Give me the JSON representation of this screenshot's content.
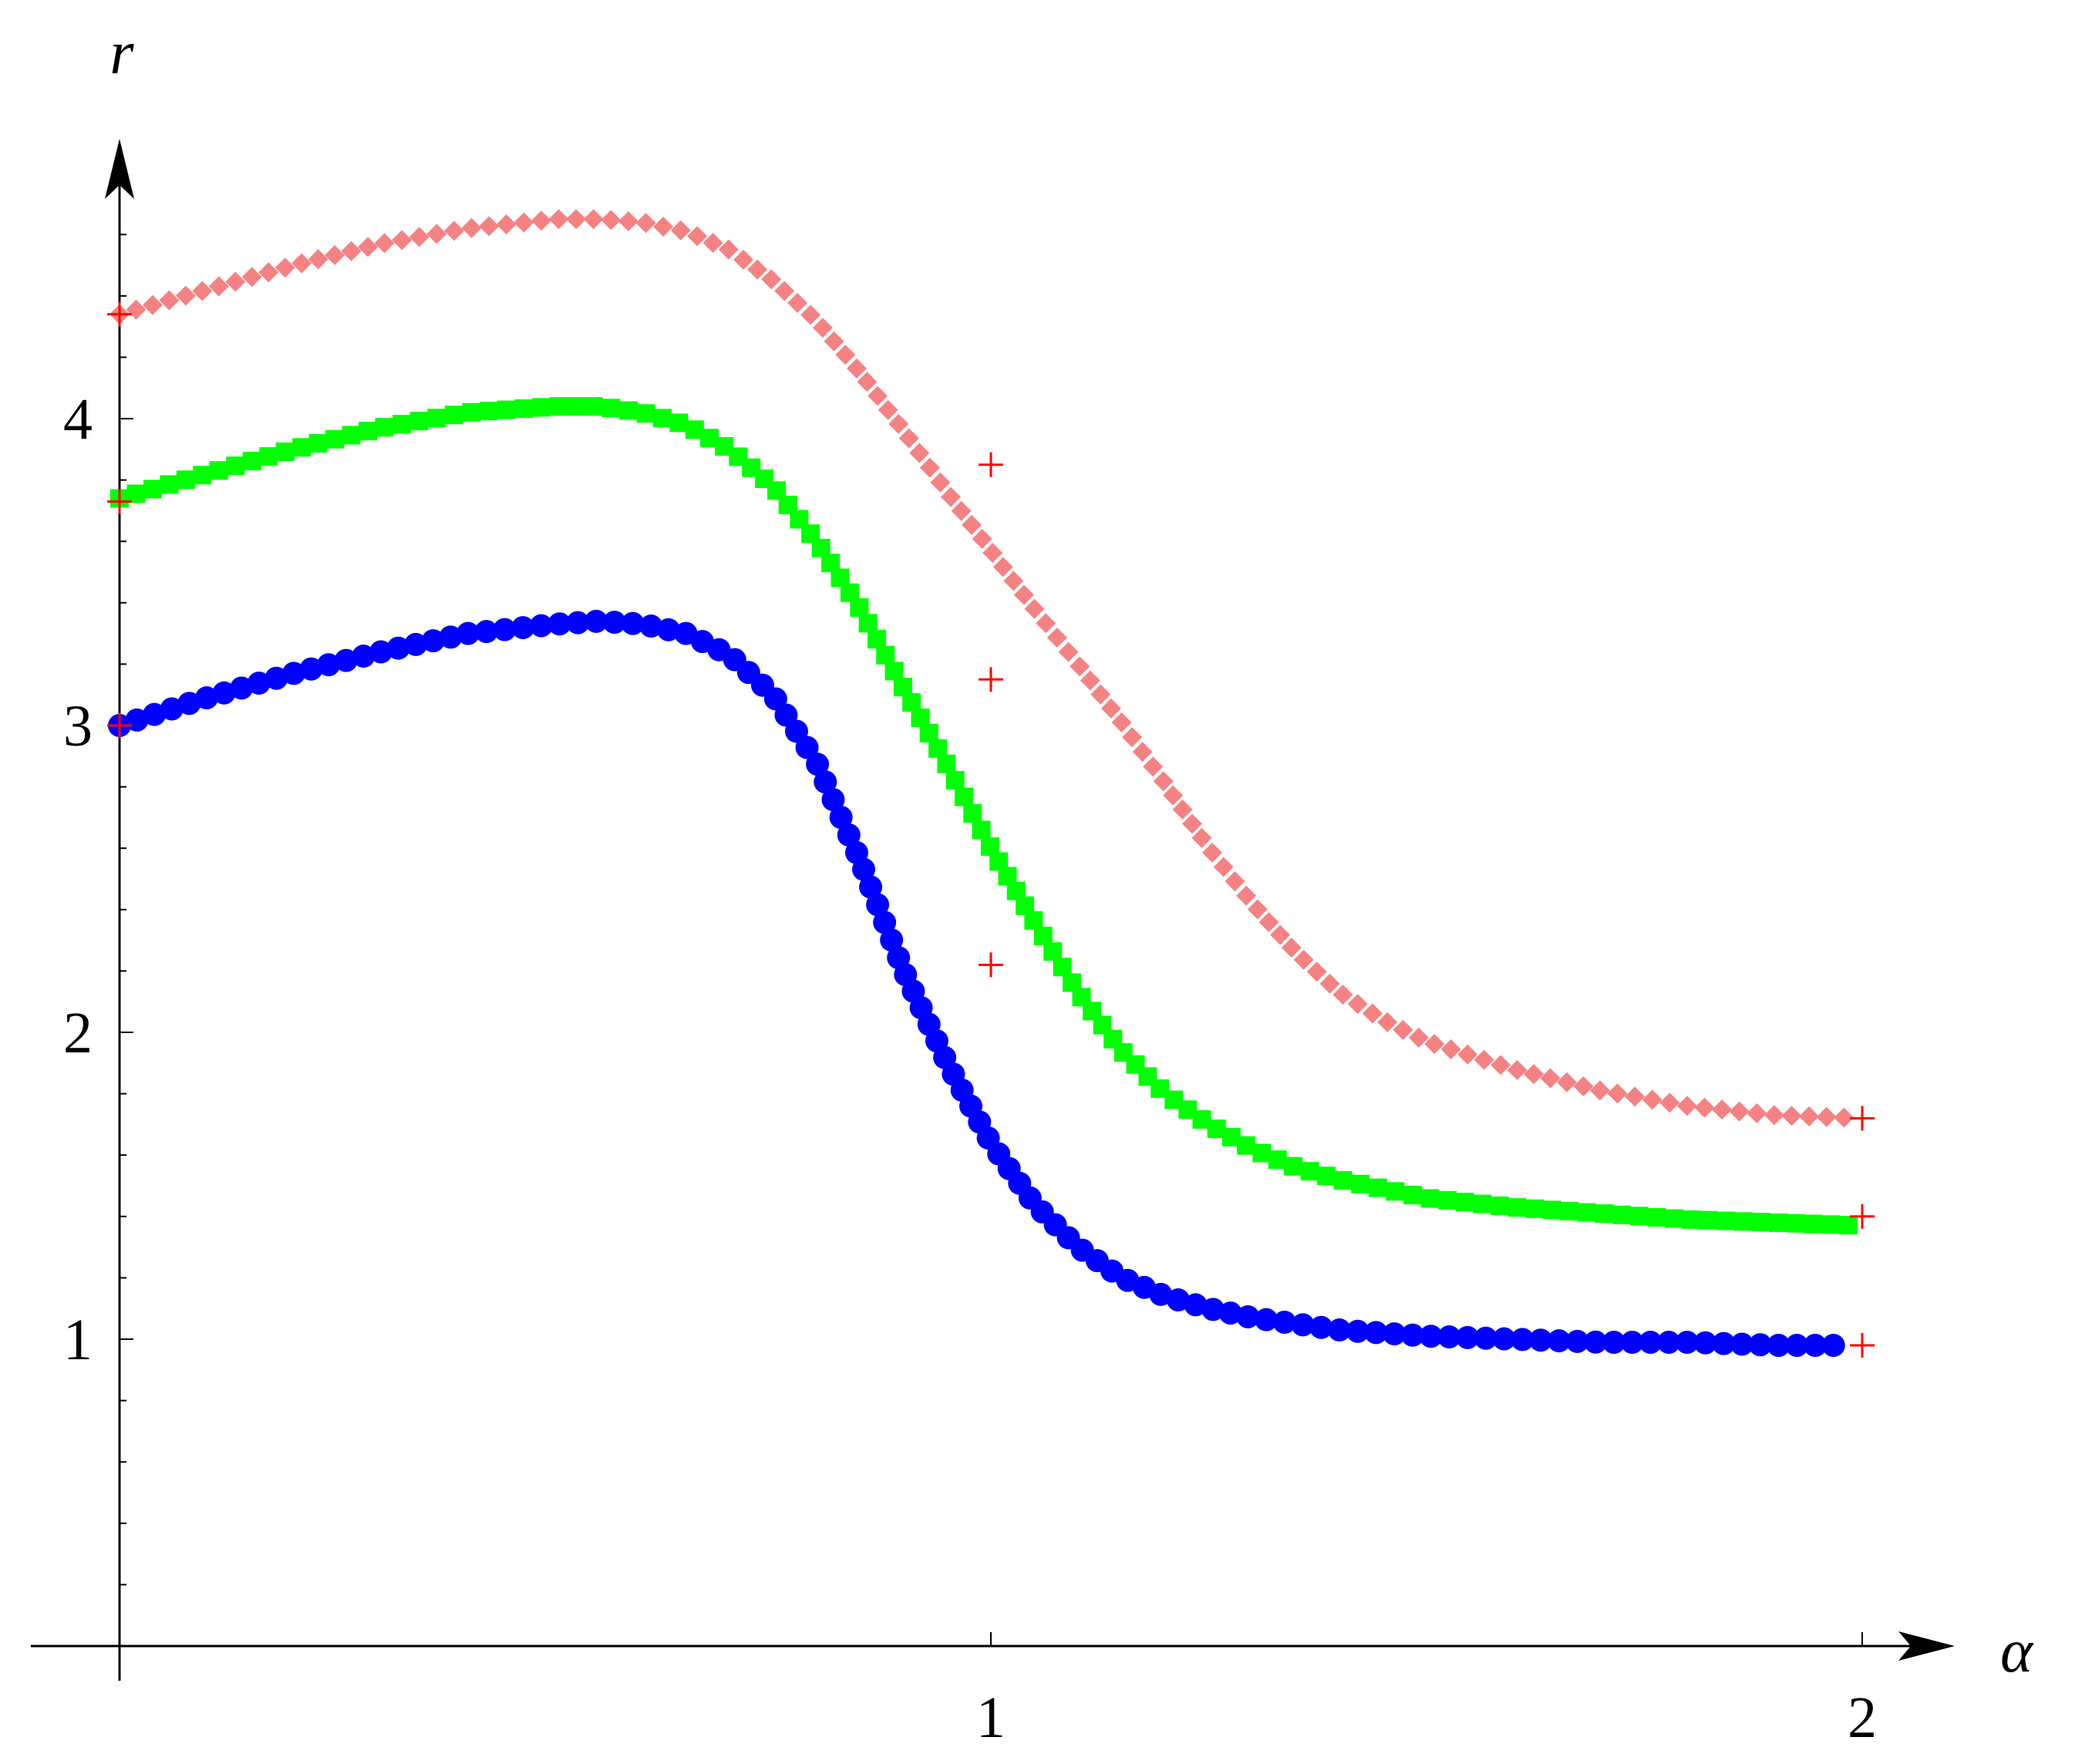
{
  "chart_data": {
    "type": "scatter",
    "title": "",
    "xlabel": "α",
    "ylabel": "r",
    "xlim": [
      -0.1,
      2.1
    ],
    "ylim": [
      0,
      4.8
    ],
    "x_ticks": [
      "1",
      "2"
    ],
    "y_ticks": [
      "1",
      "2",
      "3",
      "4"
    ],
    "grid": false,
    "legend": "none",
    "series": [
      {
        "marker": "diamond",
        "color": "#f58282",
        "x": [
          0.0,
          0.1,
          0.2,
          0.3,
          0.4,
          0.5,
          0.55,
          0.6,
          0.65,
          0.7,
          0.75,
          0.8,
          0.85,
          0.9,
          0.95,
          1.0,
          1.05,
          1.1,
          1.15,
          1.2,
          1.25,
          1.3,
          1.35,
          1.4,
          1.45,
          1.5,
          1.6,
          1.7,
          1.8,
          1.9,
          2.0
        ],
        "y": [
          4.34,
          4.42,
          4.5,
          4.57,
          4.62,
          4.65,
          4.65,
          4.64,
          4.61,
          4.55,
          4.45,
          4.32,
          4.15,
          3.96,
          3.76,
          3.57,
          3.38,
          3.2,
          3.01,
          2.81,
          2.6,
          2.42,
          2.26,
          2.13,
          2.04,
          1.97,
          1.88,
          1.81,
          1.76,
          1.73,
          1.72
        ]
      },
      {
        "marker": "square",
        "color": "#00ff00",
        "x": [
          0.0,
          0.1,
          0.2,
          0.3,
          0.4,
          0.5,
          0.55,
          0.6,
          0.65,
          0.7,
          0.75,
          0.8,
          0.85,
          0.9,
          0.95,
          1.0,
          1.05,
          1.1,
          1.15,
          1.2,
          1.25,
          1.3,
          1.35,
          1.4,
          1.45,
          1.5,
          1.6,
          1.7,
          1.8,
          1.9,
          2.0
        ],
        "y": [
          3.74,
          3.82,
          3.9,
          3.97,
          4.02,
          4.04,
          4.04,
          4.02,
          3.98,
          3.9,
          3.78,
          3.6,
          3.38,
          3.12,
          2.87,
          2.6,
          2.36,
          2.13,
          1.94,
          1.8,
          1.7,
          1.62,
          1.56,
          1.52,
          1.49,
          1.46,
          1.43,
          1.41,
          1.39,
          1.38,
          1.37
        ]
      },
      {
        "marker": "circle",
        "color": "#0000ff",
        "x": [
          0.0,
          0.1,
          0.2,
          0.3,
          0.4,
          0.5,
          0.55,
          0.6,
          0.65,
          0.7,
          0.75,
          0.8,
          0.85,
          0.9,
          0.95,
          1.0,
          1.05,
          1.1,
          1.15,
          1.2,
          1.25,
          1.3,
          1.35,
          1.4,
          1.45,
          1.5,
          1.6,
          1.7,
          1.8,
          1.9,
          2.0
        ],
        "y": [
          3.0,
          3.09,
          3.17,
          3.24,
          3.3,
          3.33,
          3.34,
          3.33,
          3.3,
          3.23,
          3.1,
          2.88,
          2.56,
          2.2,
          1.9,
          1.64,
          1.44,
          1.3,
          1.2,
          1.14,
          1.1,
          1.07,
          1.05,
          1.03,
          1.02,
          1.01,
          1.0,
          0.99,
          0.99,
          0.98,
          0.98
        ]
      },
      {
        "marker": "plus",
        "color": "#ff0000",
        "x": [
          0,
          0,
          0,
          1,
          1,
          1,
          2,
          2,
          2
        ],
        "y": [
          4.34,
          3.73,
          3.0,
          3.85,
          3.15,
          2.22,
          1.72,
          1.4,
          0.98
        ]
      }
    ]
  }
}
